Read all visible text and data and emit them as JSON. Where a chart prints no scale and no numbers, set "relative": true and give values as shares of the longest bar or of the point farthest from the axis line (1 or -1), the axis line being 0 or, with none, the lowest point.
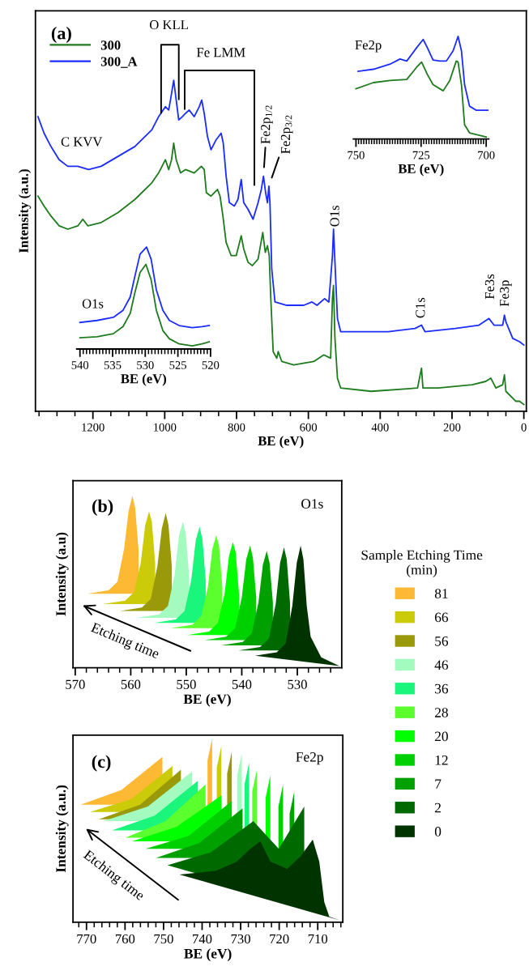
{
  "chart_data": [
    {
      "type": "line",
      "title": "(a)",
      "xlabel": "BE (eV)",
      "ylabel": "Intensity (a.u.)",
      "relative": true,
      "legend": "top left",
      "tick_labels": "x",
      "xlim": [
        1360,
        -7
      ],
      "xticks": [
        {
          "value": 1350,
          "label": null
        },
        {
          "value": 1300,
          "label": null
        },
        {
          "value": 1250,
          "label": null
        },
        1200,
        {
          "value": 1150,
          "label": null
        },
        {
          "value": 1100,
          "label": null
        },
        {
          "value": 1050,
          "label": null
        },
        1000,
        {
          "value": 950,
          "label": null
        },
        {
          "value": 900,
          "label": null
        },
        {
          "value": 850,
          "label": null
        },
        800,
        {
          "value": 750,
          "label": null
        },
        {
          "value": 700,
          "label": null
        },
        {
          "value": 650,
          "label": null
        },
        600,
        {
          "value": 550,
          "label": null
        },
        {
          "value": 500,
          "label": null
        },
        {
          "value": 450,
          "label": null
        },
        400,
        {
          "value": 350,
          "label": null
        },
        {
          "value": 300,
          "label": null
        },
        {
          "value": 250,
          "label": null
        },
        200,
        {
          "value": 150,
          "label": null
        },
        {
          "value": 100,
          "label": null
        },
        {
          "value": 50,
          "label": null
        },
        0
      ],
      "annotations": [
        "C KVV",
        "O KLL",
        "Fe LMM",
        {
          "text": "Fe2p$_{1/2}$",
          "x": 725,
          "y": 0.71
        },
        {
          "text": "Fe2p$_{3/2}$",
          "x": 710,
          "y": 0.68
        },
        {
          "text": "O1s",
          "x": 530,
          "y": 0.55
        },
        {
          "text": "C1s",
          "x": 285,
          "y": 0.26
        },
        {
          "text": "Fe3s",
          "x": 92,
          "y": 0.28
        },
        {
          "text": "Fe3p",
          "x": 54,
          "y": 0.29
        }
      ],
      "series": [
        {
          "name": "300",
          "color": "#1e7b1e",
          "x": [
            1353,
            1336,
            1317,
            1294,
            1270,
            1242,
            1228,
            1214,
            1177,
            1130,
            1083,
            1036,
            1017,
            998,
            989,
            981,
            975,
            968,
            956,
            942,
            918,
            898,
            890,
            884,
            871,
            853,
            846,
            838,
            829,
            815,
            801,
            787,
            780,
            768,
            756,
            740,
            727,
            720,
            714,
            709,
            705,
            698,
            688,
            684,
            674,
            641,
            585,
            557,
            538,
            533,
            530,
            526,
            519,
            510,
            425,
            296,
            285,
            281,
            238,
            144,
            106,
            92,
            78,
            59,
            54,
            50,
            22,
            12,
            0
          ],
          "values": [
            0.65,
            0.62,
            0.59,
            0.56,
            0.55,
            0.56,
            0.58,
            0.56,
            0.57,
            0.6,
            0.64,
            0.69,
            0.72,
            0.76,
            0.73,
            0.76,
            0.81,
            0.76,
            0.72,
            0.73,
            0.72,
            0.74,
            0.73,
            0.66,
            0.65,
            0.67,
            0.65,
            0.59,
            0.51,
            0.47,
            0.47,
            0.53,
            0.49,
            0.45,
            0.44,
            0.46,
            0.54,
            0.48,
            0.5,
            0.47,
            0.35,
            0.18,
            0.16,
            0.18,
            0.15,
            0.14,
            0.15,
            0.17,
            0.16,
            0.34,
            0.38,
            0.22,
            0.1,
            0.07,
            0.06,
            0.07,
            0.13,
            0.07,
            0.07,
            0.08,
            0.09,
            0.1,
            0.07,
            0.08,
            0.11,
            0.06,
            0.03,
            0.03,
            0.02
          ]
        },
        {
          "name": "300_A",
          "color": "#1a2cff",
          "x": [
            1353,
            1336,
            1317,
            1294,
            1270,
            1242,
            1212,
            1177,
            1130,
            1083,
            1036,
            1017,
            998,
            989,
            984,
            975,
            968,
            961,
            951,
            942,
            932,
            918,
            904,
            897,
            890,
            881,
            871,
            857,
            843,
            837,
            829,
            820,
            806,
            796,
            787,
            780,
            768,
            754,
            740,
            731,
            725,
            719,
            714,
            710,
            707,
            702,
            693,
            660,
            613,
            590,
            576,
            555,
            543,
            533,
            530,
            526,
            519,
            510,
            472,
            378,
            303,
            285,
            275,
            191,
            125,
            97,
            83,
            59,
            54,
            50,
            31,
            12,
            0
          ],
          "values": [
            0.89,
            0.84,
            0.8,
            0.76,
            0.74,
            0.74,
            0.73,
            0.74,
            0.77,
            0.8,
            0.85,
            0.89,
            0.92,
            0.91,
            0.94,
            1.0,
            0.94,
            0.88,
            0.89,
            0.9,
            0.91,
            0.89,
            0.92,
            0.94,
            0.9,
            0.83,
            0.79,
            0.82,
            0.84,
            0.81,
            0.71,
            0.63,
            0.62,
            0.64,
            0.7,
            0.63,
            0.61,
            0.58,
            0.63,
            0.67,
            0.71,
            0.66,
            0.63,
            0.68,
            0.63,
            0.43,
            0.33,
            0.32,
            0.32,
            0.33,
            0.32,
            0.34,
            0.33,
            0.47,
            0.55,
            0.45,
            0.28,
            0.24,
            0.24,
            0.24,
            0.25,
            0.26,
            0.24,
            0.25,
            0.26,
            0.28,
            0.26,
            0.26,
            0.29,
            0.27,
            0.22,
            0.21,
            0.2
          ]
        }
      ]
    },
    {
      "type": "line",
      "title": "Fe2p",
      "xlabel": "BE (eV)",
      "relative": true,
      "tick_labels": "x",
      "xlim": [
        751,
        699
      ],
      "xticks": [
        750,
        {
          "value": 749,
          "label": null
        },
        {
          "value": 748,
          "label": null
        },
        {
          "value": 747,
          "label": null
        },
        {
          "value": 746,
          "label": null
        },
        {
          "value": 745,
          "label": null
        },
        {
          "value": 744,
          "label": null
        },
        {
          "value": 743,
          "label": null
        },
        {
          "value": 742,
          "label": null
        },
        {
          "value": 741,
          "label": null
        },
        {
          "value": 740,
          "label": null
        },
        {
          "value": 739,
          "label": null
        },
        {
          "value": 738,
          "label": null
        },
        {
          "value": 737,
          "label": null
        },
        {
          "value": 736,
          "label": null
        },
        {
          "value": 735,
          "label": null
        },
        {
          "value": 734,
          "label": null
        },
        {
          "value": 733,
          "label": null
        },
        {
          "value": 732,
          "label": null
        },
        {
          "value": 731,
          "label": null
        },
        {
          "value": 730,
          "label": null
        },
        {
          "value": 729,
          "label": null
        },
        {
          "value": 728,
          "label": null
        },
        {
          "value": 727,
          "label": null
        },
        {
          "value": 726,
          "label": null
        },
        725,
        {
          "value": 724,
          "label": null
        },
        {
          "value": 723,
          "label": null
        },
        {
          "value": 722,
          "label": null
        },
        {
          "value": 721,
          "label": null
        },
        {
          "value": 720,
          "label": null
        },
        {
          "value": 719,
          "label": null
        },
        {
          "value": 718,
          "label": null
        },
        {
          "value": 717,
          "label": null
        },
        {
          "value": 716,
          "label": null
        },
        {
          "value": 715,
          "label": null
        },
        {
          "value": 714,
          "label": null
        },
        {
          "value": 713,
          "label": null
        },
        {
          "value": 712,
          "label": null
        },
        {
          "value": 711,
          "label": null
        },
        {
          "value": 710,
          "label": null
        },
        {
          "value": 709,
          "label": null
        },
        {
          "value": 708,
          "label": null
        },
        {
          "value": 707,
          "label": null
        },
        {
          "value": 706,
          "label": null
        },
        {
          "value": 705,
          "label": null
        },
        {
          "value": 704,
          "label": null
        },
        {
          "value": 703,
          "label": null
        },
        {
          "value": 702,
          "label": null
        },
        {
          "value": 701,
          "label": null
        },
        700
      ],
      "series": [
        {
          "color": "#1e7b1e",
          "x": [
            750.0,
            743.3,
            736.9,
            730.5,
            726.7,
            724.8,
            722.6,
            720.4,
            716.5,
            714.0,
            711.5,
            710.8,
            709.5,
            708.3,
            706.4,
            700.0
          ],
          "values": [
            0.49,
            0.55,
            0.57,
            0.58,
            0.7,
            0.75,
            0.63,
            0.53,
            0.47,
            0.57,
            0.76,
            0.75,
            0.53,
            0.14,
            0.06,
            0.02
          ]
        },
        {
          "color": "#1a2cff",
          "x": [
            749.2,
            743.3,
            736.9,
            733.1,
            730.5,
            726.7,
            724.2,
            722.6,
            720.4,
            717.8,
            715.3,
            712.7,
            710.8,
            709.5,
            708.3,
            706.4,
            703.8,
            699.4
          ],
          "values": [
            0.66,
            0.68,
            0.73,
            0.78,
            0.76,
            0.89,
            0.97,
            0.89,
            0.77,
            0.76,
            0.76,
            0.86,
            1.0,
            0.86,
            0.53,
            0.32,
            0.28,
            0.28
          ]
        }
      ]
    },
    {
      "type": "line",
      "title": "O1s",
      "xlabel": "BE (eV)",
      "relative": true,
      "tick_labels": "x",
      "xlim": [
        540.5,
        520
      ],
      "xticks": [
        540,
        {
          "value": 539.5,
          "label": null
        },
        {
          "value": 539,
          "label": null
        },
        {
          "value": 538.5,
          "label": null
        },
        {
          "value": 538,
          "label": null
        },
        {
          "value": 537.5,
          "label": null
        },
        {
          "value": 537,
          "label": null
        },
        {
          "value": 536.5,
          "label": null
        },
        {
          "value": 536,
          "label": null
        },
        {
          "value": 535.5,
          "label": null
        },
        535,
        {
          "value": 534.5,
          "label": null
        },
        {
          "value": 534,
          "label": null
        },
        {
          "value": 533.5,
          "label": null
        },
        {
          "value": 533,
          "label": null
        },
        {
          "value": 532.5,
          "label": null
        },
        {
          "value": 532,
          "label": null
        },
        {
          "value": 531.5,
          "label": null
        },
        {
          "value": 531,
          "label": null
        },
        {
          "value": 530.5,
          "label": null
        },
        530,
        {
          "value": 529.5,
          "label": null
        },
        {
          "value": 529,
          "label": null
        },
        {
          "value": 528.5,
          "label": null
        },
        {
          "value": 528,
          "label": null
        },
        {
          "value": 527.5,
          "label": null
        },
        {
          "value": 527,
          "label": null
        },
        {
          "value": 526.5,
          "label": null
        },
        {
          "value": 526,
          "label": null
        },
        {
          "value": 525.5,
          "label": null
        },
        525,
        {
          "value": 524.5,
          "label": null
        },
        {
          "value": 524,
          "label": null
        },
        {
          "value": 523.5,
          "label": null
        },
        {
          "value": 523,
          "label": null
        },
        {
          "value": 522.5,
          "label": null
        },
        {
          "value": 522,
          "label": null
        },
        {
          "value": 521.5,
          "label": null
        },
        {
          "value": 521,
          "label": null
        },
        {
          "value": 520.5,
          "label": null
        },
        520
      ],
      "series": [
        {
          "color": "#1e7b1e",
          "x": [
            540,
            537.4,
            534.9,
            533.4,
            532.3,
            531.6,
            530.8,
            529.9,
            529.1,
            528.3,
            527.3,
            526.3,
            524.8,
            522.8,
            521.3,
            520.2
          ],
          "values": [
            0.11,
            0.12,
            0.15,
            0.22,
            0.35,
            0.55,
            0.75,
            0.83,
            0.68,
            0.38,
            0.18,
            0.1,
            0.05,
            0.03,
            0.05,
            0.07
          ]
        },
        {
          "color": "#1a2cff",
          "x": [
            540,
            537.4,
            534.9,
            533.4,
            532.3,
            531.6,
            530.8,
            529.8,
            529.1,
            528.3,
            527.3,
            526.3,
            524.8,
            522.8,
            521.3,
            520.2
          ],
          "values": [
            0.26,
            0.28,
            0.31,
            0.38,
            0.51,
            0.71,
            0.93,
            1.0,
            0.88,
            0.58,
            0.38,
            0.28,
            0.23,
            0.21,
            0.22,
            0.23
          ]
        }
      ]
    },
    {
      "type": "area",
      "title": "(b)",
      "xlabel": "BE (eV)",
      "ylabel": "Intensity (a.u)",
      "relative": true,
      "tick_labels": "x",
      "legend": "right",
      "legend_title": "Sample Etching Time\n(min)",
      "xlim": [
        570.4,
        522
      ],
      "xticks": [
        570,
        {
          "value": 568,
          "label": null
        },
        {
          "value": 566,
          "label": null
        },
        {
          "value": 564,
          "label": null
        },
        {
          "value": 562,
          "label": null
        },
        560,
        {
          "value": 558,
          "label": null
        },
        {
          "value": 556,
          "label": null
        },
        {
          "value": 554,
          "label": null
        },
        {
          "value": 552,
          "label": null
        },
        550,
        {
          "value": 548,
          "label": null
        },
        {
          "value": 546,
          "label": null
        },
        {
          "value": 544,
          "label": null
        },
        {
          "value": 542,
          "label": null
        },
        540,
        {
          "value": 538,
          "label": null
        },
        {
          "value": 536,
          "label": null
        },
        {
          "value": 534,
          "label": null
        },
        {
          "value": 532,
          "label": null
        },
        530,
        {
          "value": 528,
          "label": null
        },
        {
          "value": 526,
          "label": null
        },
        {
          "value": 524,
          "label": null
        }
      ],
      "annotations": [
        "O1s",
        "Etching time"
      ],
      "series": [
        {
          "name": "81",
          "color": "#fdb933",
          "x": [
            567.8,
            564.0,
            562.4,
            561.2,
            560.4,
            559.7,
            559.2,
            558.6,
            null
          ],
          "values": [
            0.43,
            0.45,
            0.5,
            0.69,
            0.91,
            1.0,
            0.93,
            0.69,
            null
          ]
        },
        {
          "name": "66",
          "color": "#cbcb0a",
          "x": [
            565.0,
            561.0,
            559.4,
            558.2,
            557.4,
            556.7,
            556.2,
            555.6,
            null
          ],
          "values": [
            0.37,
            0.39,
            0.44,
            0.61,
            0.83,
            0.91,
            0.85,
            0.61,
            null
          ]
        },
        {
          "name": "56",
          "color": "#99990a",
          "x": [
            561.9,
            558.0,
            556.4,
            555.2,
            554.4,
            553.7,
            553.2,
            552.6,
            null
          ],
          "values": [
            0.33,
            0.35,
            0.4,
            0.59,
            0.81,
            0.9,
            0.83,
            0.59,
            null
          ]
        },
        {
          "name": "46",
          "color": "#a3fbbf",
          "x": [
            558.9,
            554.9,
            553.3,
            552.1,
            551.3,
            550.6,
            550.1,
            549.5,
            null
          ],
          "values": [
            0.29,
            0.31,
            0.36,
            0.54,
            0.77,
            0.85,
            0.78,
            0.54,
            null
          ]
        },
        {
          "name": "36",
          "color": "#1af57c",
          "x": [
            555.8,
            551.9,
            550.3,
            549.1,
            548.3,
            547.6,
            547.1,
            546.5,
            null
          ],
          "values": [
            0.26,
            0.28,
            0.33,
            0.51,
            0.74,
            0.82,
            0.75,
            0.51,
            null
          ]
        },
        {
          "name": "28",
          "color": "#5cff2e",
          "x": [
            552.8,
            548.9,
            547.3,
            546.1,
            545.3,
            544.6,
            544.1,
            543.5,
            null
          ],
          "values": [
            0.23,
            0.25,
            0.3,
            0.47,
            0.69,
            0.77,
            0.71,
            0.47,
            null
          ]
        },
        {
          "name": "20",
          "color": "#00ff00",
          "x": [
            549.8,
            545.9,
            544.3,
            543.1,
            542.3,
            541.6,
            541.1,
            540.5,
            null
          ],
          "values": [
            0.19,
            0.21,
            0.26,
            0.43,
            0.65,
            0.73,
            0.67,
            0.43,
            null
          ]
        },
        {
          "name": "12",
          "color": "#00d000",
          "x": [
            546.7,
            542.8,
            541.2,
            540.0,
            539.2,
            538.5,
            538.0,
            537.4,
            null
          ],
          "values": [
            0.16,
            0.18,
            0.23,
            0.41,
            0.63,
            0.71,
            0.64,
            0.41,
            null
          ]
        },
        {
          "name": "7",
          "color": "#00a000",
          "x": [
            543.7,
            539.8,
            538.2,
            537.0,
            536.2,
            535.5,
            535.0,
            534.4,
            null
          ],
          "values": [
            0.13,
            0.15,
            0.2,
            0.38,
            0.6,
            0.68,
            0.61,
            0.38,
            null
          ]
        },
        {
          "name": "2",
          "color": "#006a00",
          "x": [
            540.6,
            536.7,
            535.1,
            533.9,
            533.1,
            532.4,
            531.9,
            531.3,
            null
          ],
          "values": [
            0.1,
            0.12,
            0.17,
            0.37,
            0.61,
            0.7,
            0.63,
            0.37,
            null
          ]
        },
        {
          "name": "0",
          "color": "#003300",
          "x": [
            537.6,
            533.7,
            532.1,
            530.9,
            530.1,
            529.4,
            528.9,
            528.3,
            527.6,
            525.7,
            522.4
          ],
          "values": [
            0.07,
            0.09,
            0.14,
            0.36,
            0.61,
            0.71,
            0.63,
            0.36,
            0.18,
            0.06,
            0.01
          ]
        }
      ]
    },
    {
      "type": "area",
      "title": "(c)",
      "xlabel": "BE (eV)",
      "ylabel": "Intensity (a.u.)",
      "relative": true,
      "tick_labels": "x",
      "xlim": [
        773.5,
        703.5
      ],
      "xticks": [
        {
          "value": 772,
          "label": null
        },
        770,
        {
          "value": 768,
          "label": null
        },
        {
          "value": 766,
          "label": null
        },
        {
          "value": 764,
          "label": null
        },
        {
          "value": 762,
          "label": null
        },
        760,
        {
          "value": 758,
          "label": null
        },
        {
          "value": 756,
          "label": null
        },
        {
          "value": 754,
          "label": null
        },
        {
          "value": 752,
          "label": null
        },
        750,
        {
          "value": 748,
          "label": null
        },
        {
          "value": 746,
          "label": null
        },
        {
          "value": 744,
          "label": null
        },
        {
          "value": 742,
          "label": null
        },
        740,
        {
          "value": 738,
          "label": null
        },
        {
          "value": 736,
          "label": null
        },
        {
          "value": 734,
          "label": null
        },
        {
          "value": 732,
          "label": null
        },
        730,
        {
          "value": 728,
          "label": null
        },
        {
          "value": 726,
          "label": null
        },
        {
          "value": 724,
          "label": null
        },
        {
          "value": 722,
          "label": null
        },
        720,
        {
          "value": 718,
          "label": null
        },
        {
          "value": 716,
          "label": null
        },
        {
          "value": 714,
          "label": null
        },
        {
          "value": 712,
          "label": null
        },
        710,
        {
          "value": 708,
          "label": null
        },
        {
          "value": 706,
          "label": null
        },
        {
          "value": 704,
          "label": null
        }
      ],
      "annotations": [
        "Fe2p",
        "Etching time"
      ],
      "series": [
        {
          "color": "#fdb933",
          "x": [
            771.5,
            760.9,
            750.3,
            null,
            738.6,
            737.4,
            null
          ],
          "values": [
            0.64,
            0.72,
            0.9,
            null,
            0.88,
            1.0,
            null
          ]
        },
        {
          "color": "#cbcb0a",
          "x": [
            769.1,
            758.4,
            747.7,
            null,
            736.2,
            735.0,
            null
          ],
          "values": [
            0.6,
            0.67,
            0.85,
            null,
            0.84,
            0.96,
            null
          ]
        },
        {
          "color": "#99990a",
          "x": [
            766.8,
            756.1,
            745.5,
            null,
            733.5,
            732.3,
            null
          ],
          "values": [
            0.56,
            0.64,
            0.83,
            null,
            0.81,
            0.93,
            null
          ]
        },
        {
          "color": "#a3fbbf",
          "x": [
            765.6,
            754.1,
            742.6,
            null,
            730.9,
            729.7,
            null
          ],
          "values": [
            0.55,
            0.63,
            0.82,
            null,
            0.8,
            0.92,
            null
          ]
        },
        {
          "color": "#1af57c",
          "x": [
            763.4,
            752.3,
            741.1,
            null,
            729.0,
            727.8,
            null
          ],
          "values": [
            0.5,
            0.58,
            0.77,
            null,
            0.75,
            0.87,
            null
          ]
        },
        {
          "color": "#5cff2e",
          "x": [
            759.9,
            749.5,
            739.1,
            null,
            727.0,
            725.8,
            null
          ],
          "values": [
            0.46,
            0.55,
            0.75,
            null,
            0.71,
            0.83,
            null
          ]
        },
        {
          "color": "#00ff00",
          "x": [
            758.2,
            746.6,
            735.0,
            null,
            723.5,
            722.3,
            null
          ],
          "values": [
            0.44,
            0.52,
            0.69,
            null,
            0.68,
            0.8,
            null
          ]
        },
        {
          "color": "#00d000",
          "x": [
            754.7,
            743.5,
            732.3,
            null,
            720.2,
            719.0,
            null
          ],
          "values": [
            0.4,
            0.47,
            0.66,
            null,
            0.63,
            0.75,
            null
          ]
        },
        {
          "color": "#00a000",
          "x": [
            752.0,
            740.8,
            729.5,
            null,
            717.3,
            716.1,
            null
          ],
          "values": [
            0.35,
            0.43,
            0.62,
            null,
            0.59,
            0.71,
            null
          ]
        },
        {
          "color": "#006a00",
          "x": [
            749.0,
            737.8,
            726.7,
            720.1,
            713.5,
            null,
            707.0
          ],
          "values": [
            0.31,
            0.38,
            0.55,
            0.4,
            0.63,
            null,
            0.06
          ]
        },
        {
          "color": "#003300",
          "x": [
            745.9,
            736.3,
            731.0,
            727.5,
            724.9,
            722.3,
            717.9,
            714.4,
            711.3,
            709.6,
            708.3,
            707.0,
            704.3
          ],
          "values": [
            0.26,
            0.28,
            0.33,
            0.4,
            0.44,
            0.33,
            0.29,
            0.36,
            0.45,
            0.33,
            0.11,
            0.03,
            0.01
          ]
        }
      ]
    }
  ]
}
